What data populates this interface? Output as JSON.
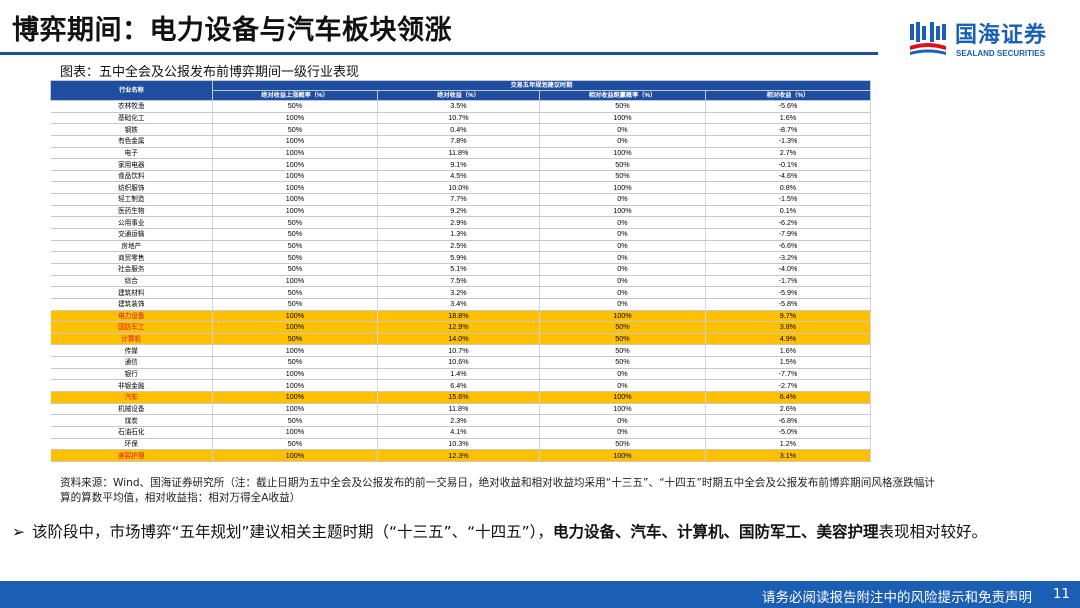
{
  "title": "博弈期间：电力设备与汽车板块领涨",
  "logo": {
    "cn": "国海证券",
    "en": "SEALAND SECURITIES"
  },
  "caption": "图表：五中全会及公报发布前博弈期间一级行业表现",
  "table": {
    "col_name": "行业名称",
    "group_header": "交易五年规划建议时期",
    "sub_headers": [
      "绝对收益上涨概率（%）",
      "绝对收益（%）",
      "相对收益跑赢概率（%）",
      "相对收益（%）"
    ],
    "rows": [
      {
        "name": "农林牧渔",
        "v": [
          "50%",
          "3.5%",
          "50%",
          "-5.6%"
        ],
        "hl": false
      },
      {
        "name": "基础化工",
        "v": [
          "100%",
          "10.7%",
          "100%",
          "1.6%"
        ],
        "hl": false
      },
      {
        "name": "钢铁",
        "v": [
          "50%",
          "0.4%",
          "0%",
          "-8.7%"
        ],
        "hl": false
      },
      {
        "name": "有色金属",
        "v": [
          "100%",
          "7.8%",
          "0%",
          "-1.3%"
        ],
        "hl": false
      },
      {
        "name": "电子",
        "v": [
          "100%",
          "11.8%",
          "100%",
          "2.7%"
        ],
        "hl": false
      },
      {
        "name": "家用电器",
        "v": [
          "100%",
          "9.1%",
          "50%",
          "-0.1%"
        ],
        "hl": false
      },
      {
        "name": "食品饮料",
        "v": [
          "100%",
          "4.5%",
          "50%",
          "-4.6%"
        ],
        "hl": false
      },
      {
        "name": "纺织服饰",
        "v": [
          "100%",
          "10.0%",
          "100%",
          "0.8%"
        ],
        "hl": false
      },
      {
        "name": "轻工制造",
        "v": [
          "100%",
          "7.7%",
          "0%",
          "-1.5%"
        ],
        "hl": false
      },
      {
        "name": "医药生物",
        "v": [
          "100%",
          "9.2%",
          "100%",
          "0.1%"
        ],
        "hl": false
      },
      {
        "name": "公用事业",
        "v": [
          "50%",
          "2.9%",
          "0%",
          "-6.2%"
        ],
        "hl": false
      },
      {
        "name": "交通运输",
        "v": [
          "50%",
          "1.3%",
          "0%",
          "-7.9%"
        ],
        "hl": false
      },
      {
        "name": "房地产",
        "v": [
          "50%",
          "2.5%",
          "0%",
          "-6.6%"
        ],
        "hl": false
      },
      {
        "name": "商贸零售",
        "v": [
          "50%",
          "5.9%",
          "0%",
          "-3.2%"
        ],
        "hl": false
      },
      {
        "name": "社会服务",
        "v": [
          "50%",
          "5.1%",
          "0%",
          "-4.0%"
        ],
        "hl": false
      },
      {
        "name": "综合",
        "v": [
          "100%",
          "7.5%",
          "0%",
          "-1.7%"
        ],
        "hl": false
      },
      {
        "name": "建筑材料",
        "v": [
          "50%",
          "3.2%",
          "0%",
          "-5.9%"
        ],
        "hl": false
      },
      {
        "name": "建筑装饰",
        "v": [
          "50%",
          "3.4%",
          "0%",
          "-5.8%"
        ],
        "hl": false
      },
      {
        "name": "电力设备",
        "v": [
          "100%",
          "18.8%",
          "100%",
          "9.7%"
        ],
        "hl": true
      },
      {
        "name": "国防军工",
        "v": [
          "100%",
          "12.9%",
          "50%",
          "3.8%"
        ],
        "hl": true
      },
      {
        "name": "计算机",
        "v": [
          "50%",
          "14.0%",
          "50%",
          "4.9%"
        ],
        "hl": true
      },
      {
        "name": "传媒",
        "v": [
          "100%",
          "10.7%",
          "50%",
          "1.6%"
        ],
        "hl": false
      },
      {
        "name": "通信",
        "v": [
          "50%",
          "10.6%",
          "50%",
          "1.5%"
        ],
        "hl": false
      },
      {
        "name": "银行",
        "v": [
          "100%",
          "1.4%",
          "0%",
          "-7.7%"
        ],
        "hl": false
      },
      {
        "name": "非银金融",
        "v": [
          "100%",
          "6.4%",
          "0%",
          "-2.7%"
        ],
        "hl": false
      },
      {
        "name": "汽车",
        "v": [
          "100%",
          "15.6%",
          "100%",
          "6.4%"
        ],
        "hl": true
      },
      {
        "name": "机械设备",
        "v": [
          "100%",
          "11.8%",
          "100%",
          "2.6%"
        ],
        "hl": false
      },
      {
        "name": "煤炭",
        "v": [
          "50%",
          "2.3%",
          "0%",
          "-6.8%"
        ],
        "hl": false
      },
      {
        "name": "石油石化",
        "v": [
          "100%",
          "4.1%",
          "0%",
          "-5.0%"
        ],
        "hl": false
      },
      {
        "name": "环保",
        "v": [
          "50%",
          "10.3%",
          "50%",
          "1.2%"
        ],
        "hl": false
      },
      {
        "name": "美容护理",
        "v": [
          "100%",
          "12.3%",
          "100%",
          "3.1%"
        ],
        "hl": true
      }
    ]
  },
  "source_note": "资料来源：Wind、国海证券研究所（注：截止日期为五中全会及公报发布的前一交易日，绝对收益和相对收益均采用“十三五”、“十四五”时期五中全会及公报发布前博弈期间风格涨跌幅计算的算数平均值，相对收益指：相对万得全A收益）",
  "bullet": {
    "marker": "➢",
    "text_before": "该阶段中，市场博弈“五年规划”建议相关主题时期（“十三五”、“十四五”），",
    "text_bold": "电力设备、汽车、计算机、国防军工、美容护理",
    "text_after": "表现相对较好。"
  },
  "footer": {
    "disclaimer": "请务必阅读报告附注中的风险提示和免责声明",
    "page": "11"
  },
  "colors": {
    "brand_blue": "#1a5fb4",
    "header_blue": "#1f4e9e",
    "highlight": "#ffc000",
    "highlight_text": "#e0101a"
  }
}
